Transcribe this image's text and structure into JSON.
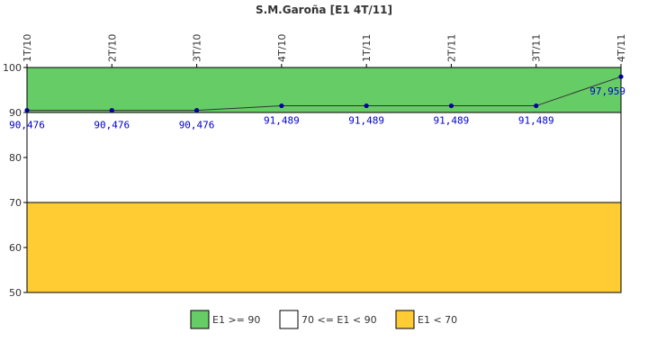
{
  "chart_data": {
    "type": "line",
    "title": "S.M.Garoña [E1 4T/11]",
    "categories": [
      "1T/10",
      "2T/10",
      "3T/10",
      "4T/10",
      "1T/11",
      "2T/11",
      "3T/11",
      "4T/11"
    ],
    "series": [
      {
        "values": [
          90.476,
          90.476,
          90.476,
          91.489,
          91.489,
          91.489,
          91.489,
          97.959
        ]
      }
    ],
    "data_labels": [
      "90,476",
      "90,476",
      "90,476",
      "91,489",
      "91,489",
      "91,489",
      "91,489",
      "97,959"
    ],
    "ylim": [
      50,
      100
    ],
    "yticks": [
      50,
      60,
      70,
      80,
      90,
      100
    ],
    "grid": false,
    "legend_position": "bottom",
    "bands": [
      {
        "from": 90,
        "to": 100,
        "label": "E1 >= 90",
        "color": "#66cc66"
      },
      {
        "from": 70,
        "to": 90,
        "label": "70 <= E1 < 90",
        "color": "#ffffff"
      },
      {
        "from": 50,
        "to": 70,
        "label": "E1 < 70",
        "color": "#ffcc33"
      }
    ],
    "line_color": "#333333",
    "marker_color": "#000099"
  }
}
